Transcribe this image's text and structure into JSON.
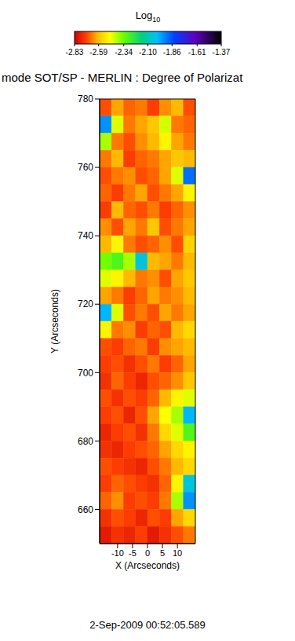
{
  "chart_data": {
    "type": "heatmap",
    "title": "mode SOT/SP - MERLIN : Degree of Polarizat",
    "subtitle": "2-Sep-2009 00:52:05.589",
    "x_label": "X (Arcseconds)",
    "y_label": "Y (Arcseconds)",
    "xlim": [
      -16,
      16
    ],
    "ylim": [
      650,
      780
    ],
    "xticks": [
      -10,
      -5,
      0,
      5,
      10
    ],
    "yticks": [
      660,
      680,
      700,
      720,
      740,
      760,
      780
    ],
    "grid": false,
    "cell_x": [
      -14,
      -10,
      -6,
      -2,
      2,
      6,
      10,
      14
    ],
    "cell_y": [
      777.5,
      772.5,
      767.5,
      762.5,
      757.5,
      752.5,
      747.5,
      742.5,
      737.5,
      732.5,
      727.5,
      722.5,
      717.5,
      712.5,
      707.5,
      702.5,
      697.5,
      692.5,
      687.5,
      682.5,
      677.5,
      672.5,
      667.5,
      662.5,
      657.5,
      652.5
    ],
    "cells": [
      [
        -2.7,
        -2.62,
        -2.68,
        -2.66,
        -2.72,
        -2.64,
        -2.6,
        -2.7
      ],
      [
        -1.95,
        -2.45,
        -2.66,
        -2.62,
        -2.58,
        -2.44,
        -2.66,
        -2.68
      ],
      [
        -2.4,
        -2.66,
        -2.7,
        -2.64,
        -2.6,
        -2.5,
        -2.62,
        -2.66
      ],
      [
        -2.66,
        -2.6,
        -2.72,
        -2.68,
        -2.66,
        -2.62,
        -2.58,
        -2.6
      ],
      [
        -2.7,
        -2.66,
        -2.64,
        -2.7,
        -2.68,
        -2.62,
        -2.45,
        -1.9
      ],
      [
        -2.68,
        -2.72,
        -2.66,
        -2.62,
        -2.7,
        -2.66,
        -2.62,
        -2.5
      ],
      [
        -2.72,
        -2.6,
        -2.68,
        -2.7,
        -2.66,
        -2.72,
        -2.68,
        -2.64
      ],
      [
        -2.64,
        -2.7,
        -2.62,
        -2.66,
        -2.58,
        -2.7,
        -2.66,
        -2.62
      ],
      [
        -2.6,
        -2.5,
        -2.66,
        -2.7,
        -2.68,
        -2.64,
        -2.7,
        -2.56
      ],
      [
        -2.35,
        -2.3,
        -2.4,
        -2.05,
        -2.6,
        -2.62,
        -2.66,
        -2.6
      ],
      [
        -2.45,
        -2.5,
        -2.6,
        -2.66,
        -2.64,
        -2.7,
        -2.62,
        -2.58
      ],
      [
        -2.62,
        -2.66,
        -2.72,
        -2.68,
        -2.62,
        -2.66,
        -2.64,
        -2.6
      ],
      [
        -2.0,
        -2.45,
        -2.7,
        -2.66,
        -2.7,
        -2.62,
        -2.66,
        -2.62
      ],
      [
        -2.5,
        -2.66,
        -2.64,
        -2.72,
        -2.68,
        -2.7,
        -2.6,
        -2.55
      ],
      [
        -2.7,
        -2.72,
        -2.68,
        -2.66,
        -2.72,
        -2.64,
        -2.62,
        -2.6
      ],
      [
        -2.72,
        -2.7,
        -2.74,
        -2.7,
        -2.66,
        -2.72,
        -2.68,
        -2.62
      ],
      [
        -2.74,
        -2.68,
        -2.72,
        -2.76,
        -2.7,
        -2.68,
        -2.64,
        -2.58
      ],
      [
        -2.7,
        -2.74,
        -2.7,
        -2.72,
        -2.68,
        -2.6,
        -2.5,
        -2.45
      ],
      [
        -2.72,
        -2.7,
        -2.76,
        -2.7,
        -2.62,
        -2.48,
        -2.4,
        -2.0
      ],
      [
        -2.76,
        -2.72,
        -2.7,
        -2.74,
        -2.66,
        -2.55,
        -2.45,
        -2.3
      ],
      [
        -2.74,
        -2.76,
        -2.72,
        -2.7,
        -2.68,
        -2.62,
        -2.55,
        -2.5
      ],
      [
        -2.7,
        -2.72,
        -2.74,
        -2.76,
        -2.7,
        -2.66,
        -2.6,
        -2.55
      ],
      [
        -2.72,
        -2.68,
        -2.7,
        -2.72,
        -2.74,
        -2.68,
        -2.5,
        -2.05
      ],
      [
        -2.68,
        -2.64,
        -2.72,
        -2.7,
        -2.72,
        -2.66,
        -2.4,
        -1.95
      ],
      [
        -2.74,
        -2.7,
        -2.72,
        -2.76,
        -2.7,
        -2.72,
        -2.62,
        -2.55
      ],
      [
        -2.78,
        -2.74,
        -2.76,
        -2.72,
        -2.78,
        -2.74,
        -2.7,
        -2.66
      ]
    ],
    "colorbar": {
      "label": "Log10",
      "range": [
        -2.83,
        -1.37
      ],
      "ticks": [
        -2.83,
        -2.59,
        -2.34,
        {
          "value": -2.1,
          "label": "-2.10"
        },
        -1.86,
        -1.61,
        -1.37
      ]
    }
  }
}
